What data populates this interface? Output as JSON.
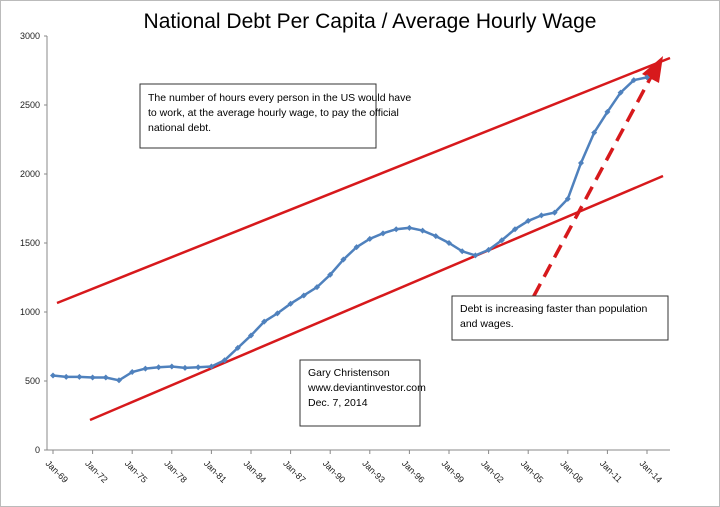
{
  "chart_data": {
    "type": "line",
    "title": "National Debt Per Capita / Average Hourly Wage",
    "categories": [
      "Jan-69",
      null,
      null,
      "Jan-72",
      null,
      null,
      "Jan-75",
      null,
      null,
      "Jan-78",
      null,
      null,
      "Jan-81",
      null,
      null,
      "Jan-84",
      null,
      null,
      "Jan-87",
      null,
      null,
      "Jan-90",
      null,
      null,
      "Jan-93",
      null,
      null,
      "Jan-96",
      null,
      null,
      "Jan-99",
      null,
      null,
      "Jan-02",
      null,
      null,
      "Jan-05",
      null,
      null,
      "Jan-08",
      null,
      null,
      "Jan-11",
      null,
      null,
      "Jan-14"
    ],
    "series": [
      {
        "name": "Debt per capita / hourly wage",
        "color": "#4f81bd",
        "values": [
          540,
          530,
          530,
          525,
          525,
          505,
          565,
          590,
          600,
          605,
          595,
          600,
          605,
          650,
          740,
          830,
          930,
          990,
          1060,
          1120,
          1180,
          1270,
          1380,
          1470,
          1530,
          1570,
          1600,
          1610,
          1590,
          1550,
          1500,
          1440,
          1410,
          1450,
          1520,
          1600,
          1660,
          1700,
          1720,
          1820,
          2080,
          2300,
          2450,
          2590,
          2680,
          2700
        ]
      }
    ],
    "ylim": [
      0,
      3000
    ],
    "yticks": [
      0,
      500,
      1000,
      1500,
      2000,
      2500,
      3000
    ],
    "annotations": [
      {
        "lines": [
          "The number of hours every person in the US would have",
          " to work, at the average hourly wage, to pay the official",
          "national debt."
        ]
      },
      {
        "lines": [
          "Debt is increasing faster than population",
          "and wages."
        ]
      },
      {
        "lines": [
          "Gary Christenson",
          "www.deviantinvestor.com",
          "Dec. 7, 2014"
        ]
      }
    ]
  }
}
